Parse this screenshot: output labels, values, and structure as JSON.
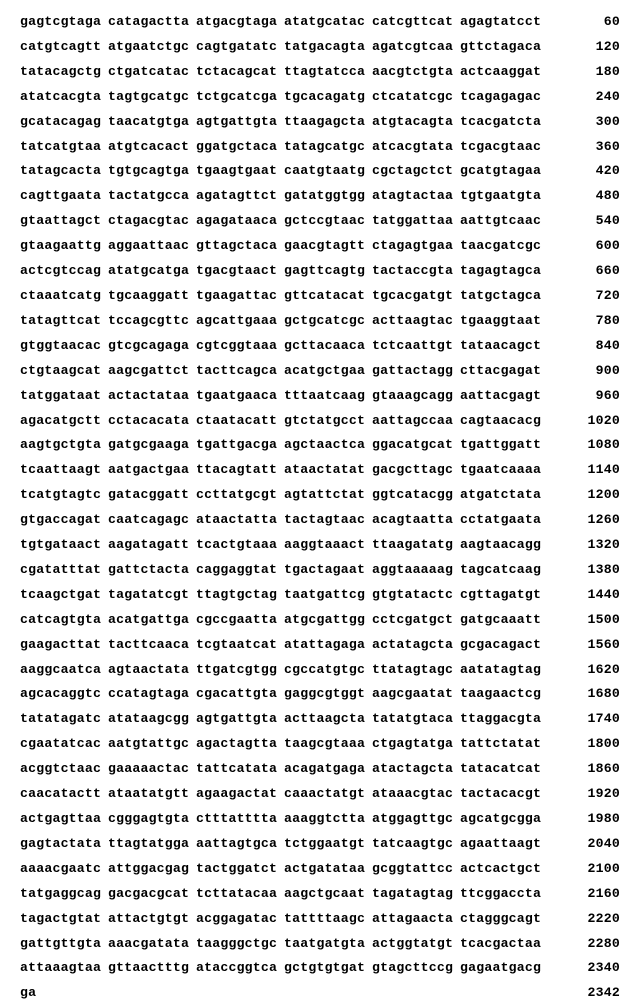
{
  "sequence": {
    "block_width_chars": 10,
    "blocks_per_line": 6,
    "font_family": "Courier New",
    "font_size_pt": 10,
    "font_weight": "bold",
    "text_color": "#000000",
    "background_color": "#ffffff",
    "rows": [
      {
        "blocks": [
          "gagtcgtaga",
          "catagactta",
          "atgacgtaga",
          "atatgcatac",
          "catcgttcat",
          "agagtatcct"
        ],
        "pos": 60
      },
      {
        "blocks": [
          "catgtcagtt",
          "atgaatctgc",
          "cagtgatatc",
          "tatgacagta",
          "agatcgtcaa",
          "gttctagaca"
        ],
        "pos": 120
      },
      {
        "blocks": [
          "tatacagctg",
          "ctgatcatac",
          "tctacagcat",
          "ttagtatcca",
          "aacgtctgta",
          "actcaaggat"
        ],
        "pos": 180
      },
      {
        "blocks": [
          "atatcacgta",
          "tagtgcatgc",
          "tctgcatcga",
          "tgcacagatg",
          "ctcatatcgc",
          "tcagagagac"
        ],
        "pos": 240
      },
      {
        "blocks": [
          "gcatacagag",
          "taacatgtga",
          "agtgattgta",
          "ttaagagcta",
          "atgtacagta",
          "tcacgatcta"
        ],
        "pos": 300
      },
      {
        "blocks": [
          "tatcatgtaa",
          "atgtcacact",
          "ggatgctaca",
          "tatagcatgc",
          "atcacgtata",
          "tcgacgtaac"
        ],
        "pos": 360
      },
      {
        "blocks": [
          "tatagcacta",
          "tgtgcagtga",
          "tgaagtgaat",
          "caatgtaatg",
          "cgctagctct",
          "gcatgtagaa"
        ],
        "pos": 420
      },
      {
        "blocks": [
          "cagttgaata",
          "tactatgcca",
          "agatagttct",
          "gatatggtgg",
          "atagtactaa",
          "tgtgaatgta"
        ],
        "pos": 480
      },
      {
        "blocks": [
          "gtaattagct",
          "ctagacgtac",
          "agagataaca",
          "gctccgtaac",
          "tatggattaa",
          "aattgtcaac"
        ],
        "pos": 540
      },
      {
        "blocks": [
          "gtaagaattg",
          "aggaattaac",
          "gttagctaca",
          "gaacgtagtt",
          "ctagagtgaa",
          "taacgatcgc"
        ],
        "pos": 600
      },
      {
        "blocks": [
          "actcgtccag",
          "atatgcatga",
          "tgacgtaact",
          "gagttcagtg",
          "tactaccgta",
          "tagagtagca"
        ],
        "pos": 660
      },
      {
        "blocks": [
          "ctaaatcatg",
          "tgcaaggatt",
          "tgaagattac",
          "gttcatacat",
          "tgcacgatgt",
          "tatgctagca"
        ],
        "pos": 720
      },
      {
        "blocks": [
          "tatagttcat",
          "tccagcgttc",
          "agcattgaaa",
          "gctgcatcgc",
          "acttaagtac",
          "tgaaggtaat"
        ],
        "pos": 780
      },
      {
        "blocks": [
          "gtggtaacac",
          "gtcgcagaga",
          "cgtcggtaaa",
          "gcttacaaca",
          "tctcaattgt",
          "tataacagct"
        ],
        "pos": 840
      },
      {
        "blocks": [
          "ctgtaagcat",
          "aagcgattct",
          "tacttcagca",
          "acatgctgaa",
          "gattactagg",
          "cttacgagat"
        ],
        "pos": 900
      },
      {
        "blocks": [
          "tatggataat",
          "actactataa",
          "tgaatgaaca",
          "tttaatcaag",
          "gtaaagcagg",
          "aattacgagt"
        ],
        "pos": 960
      },
      {
        "blocks": [
          "agacatgctt",
          "cctacacata",
          "ctaatacatt",
          "gtctatgcct",
          "aattagccaa",
          "cagtaacacg"
        ],
        "pos": 1020
      },
      {
        "blocks": [
          "aagtgctgta",
          "gatgcgaaga",
          "tgattgacga",
          "agctaactca",
          "ggacatgcat",
          "tgattggatt"
        ],
        "pos": 1080
      },
      {
        "blocks": [
          "tcaattaagt",
          "aatgactgaa",
          "ttacagtatt",
          "ataactatat",
          "gacgcttagc",
          "tgaatcaaaa"
        ],
        "pos": 1140
      },
      {
        "blocks": [
          "tcatgtagtc",
          "gatacggatt",
          "ccttatgcgt",
          "agtattctat",
          "ggtcatacgg",
          "atgatctata"
        ],
        "pos": 1200
      },
      {
        "blocks": [
          "gtgaccagat",
          "caatcagagc",
          "ataactatta",
          "tactagtaac",
          "acagtaatta",
          "cctatgaata"
        ],
        "pos": 1260
      },
      {
        "blocks": [
          "tgtgataact",
          "aagatagatt",
          "tcactgtaaa",
          "aaggtaaact",
          "ttaagatatg",
          "aagtaacagg"
        ],
        "pos": 1320
      },
      {
        "blocks": [
          "cgatatttat",
          "gattctacta",
          "caggaggtat",
          "tgactagaat",
          "aggtaaaaag",
          "tagcatcaag"
        ],
        "pos": 1380
      },
      {
        "blocks": [
          "tcaagctgat",
          "tagatatcgt",
          "ttagtgctag",
          "taatgattcg",
          "gtgtatactc",
          "cgttagatgt"
        ],
        "pos": 1440
      },
      {
        "blocks": [
          "catcagtgta",
          "acatgattga",
          "cgccgaatta",
          "atgcgattgg",
          "cctcgatgct",
          "gatgcaaatt"
        ],
        "pos": 1500
      },
      {
        "blocks": [
          "gaagacttat",
          "tacttcaaca",
          "tcgtaatcat",
          "atattagaga",
          "actatagcta",
          "gcgacagact"
        ],
        "pos": 1560
      },
      {
        "blocks": [
          "aaggcaatca",
          "agtaactata",
          "ttgatcgtgg",
          "cgccatgtgc",
          "ttatagtagc",
          "aatatagtag"
        ],
        "pos": 1620
      },
      {
        "blocks": [
          "agcacaggtc",
          "ccatagtaga",
          "cgacattgta",
          "gaggcgtggt",
          "aagcgaatat",
          "taagaactcg"
        ],
        "pos": 1680
      },
      {
        "blocks": [
          "tatatagatc",
          "atataagcgg",
          "agtgattgta",
          "acttaagcta",
          "tatatgtaca",
          "ttaggacgta"
        ],
        "pos": 1740
      },
      {
        "blocks": [
          "cgaatatcac",
          "aatgtattgc",
          "agactagtta",
          "taagcgtaaa",
          "ctgagtatga",
          "tattctatat"
        ],
        "pos": 1800
      },
      {
        "blocks": [
          "acggtctaac",
          "gaaaaactac",
          "tattcatata",
          "acagatgaga",
          "atactagcta",
          "tatacatcat"
        ],
        "pos": 1860
      },
      {
        "blocks": [
          "caacatactt",
          "ataatatgtt",
          "agaagactat",
          "caaactatgt",
          "ataaacgtac",
          "tactacacgt"
        ],
        "pos": 1920
      },
      {
        "blocks": [
          "actgagttaa",
          "cgggagtgta",
          "ctttatttta",
          "aaaggtctta",
          "atggagttgc",
          "agcatgcgga"
        ],
        "pos": 1980
      },
      {
        "blocks": [
          "gagtactata",
          "ttagtatgga",
          "aattagtgca",
          "tctggaatgt",
          "tatcaagtgc",
          "agaattaagt"
        ],
        "pos": 2040
      },
      {
        "blocks": [
          "aaaacgaatc",
          "attggacgag",
          "tactggatct",
          "actgatataa",
          "gcggtattcc",
          "actcactgct"
        ],
        "pos": 2100
      },
      {
        "blocks": [
          "tatgaggcag",
          "gacgacgcat",
          "tcttatacaa",
          "aagctgcaat",
          "tagatagtag",
          "ttcggaccta"
        ],
        "pos": 2160
      },
      {
        "blocks": [
          "tagactgtat",
          "attactgtgt",
          "acggagatac",
          "tattttaagc",
          "attagaacta",
          "ctagggcagt"
        ],
        "pos": 2220
      },
      {
        "blocks": [
          "gattgttgta",
          "aaacgatata",
          "taagggctgc",
          "taatgatgta",
          "actggtatgt",
          "tcacgactaa"
        ],
        "pos": 2280
      },
      {
        "blocks": [
          "attaaagtaa",
          "gttaactttg",
          "ataccggtca",
          "gctgtgtgat",
          "gtagcttccg",
          "gagaatgacg"
        ],
        "pos": 2340
      },
      {
        "blocks": [
          "ga",
          "",
          "",
          "",
          "",
          ""
        ],
        "pos": 2342
      }
    ]
  }
}
